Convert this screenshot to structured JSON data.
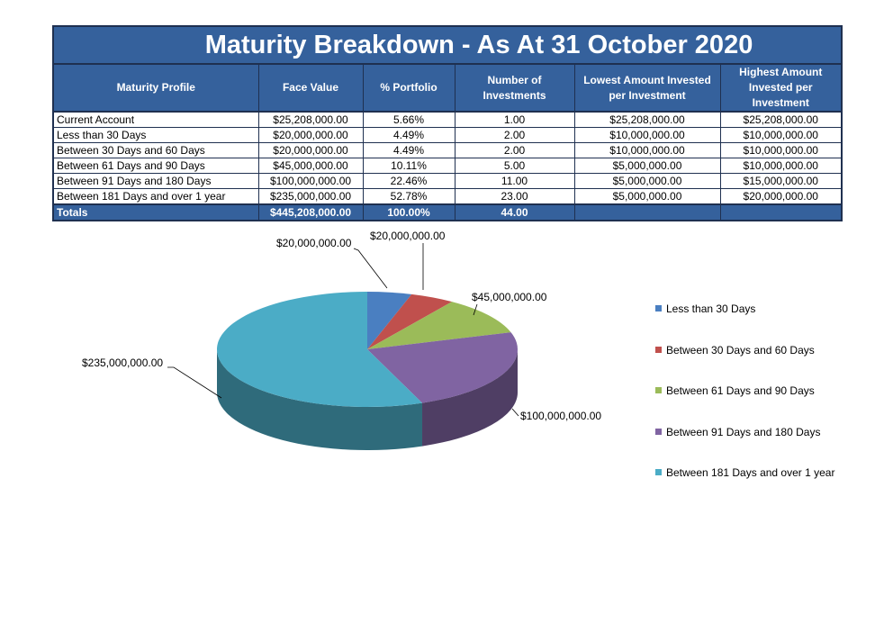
{
  "report": {
    "title": "Maturity Breakdown - As At 31 October 2020",
    "columns": [
      "Maturity Profile",
      "Face Value",
      "% Portfolio",
      "Number of Investments",
      "Lowest Amount Invested per Investment",
      "Highest Amount Invested per Investment"
    ],
    "rows": [
      [
        "Current Account",
        "$25,208,000.00",
        "5.66%",
        "1.00",
        "$25,208,000.00",
        "$25,208,000.00"
      ],
      [
        "Less than 30 Days",
        "$20,000,000.00",
        "4.49%",
        "2.00",
        "$10,000,000.00",
        "$10,000,000.00"
      ],
      [
        "Between 30 Days and 60 Days",
        "$20,000,000.00",
        "4.49%",
        "2.00",
        "$10,000,000.00",
        "$10,000,000.00"
      ],
      [
        "Between 61 Days and 90 Days",
        "$45,000,000.00",
        "10.11%",
        "5.00",
        "$5,000,000.00",
        "$10,000,000.00"
      ],
      [
        "Between 91 Days and 180 Days",
        "$100,000,000.00",
        "22.46%",
        "11.00",
        "$5,000,000.00",
        "$15,000,000.00"
      ],
      [
        "Between 181 Days and over 1 year",
        "$235,000,000.00",
        "52.78%",
        "23.00",
        "$5,000,000.00",
        "$20,000,000.00"
      ]
    ],
    "totals": [
      "Totals",
      "$445,208,000.00",
      "100.00%",
      "44.00",
      "",
      ""
    ]
  },
  "chart_data": {
    "type": "pie",
    "categories": [
      "Less than 30 Days",
      "Between 30 Days and 60 Days",
      "Between 61 Days and 90 Days",
      "Between 91 Days and 180 Days",
      "Between 181 Days and over 1 year"
    ],
    "values": [
      20000000,
      20000000,
      45000000,
      100000000,
      235000000
    ],
    "data_labels": [
      "$20,000,000.00",
      "$20,000,000.00",
      "$45,000,000.00",
      "$100,000,000.00",
      "$235,000,000.00"
    ],
    "colors": [
      "#4a7fc1",
      "#c0504d",
      "#9bbb59",
      "#8064a2",
      "#4bacc6"
    ],
    "style": "3d",
    "legend_position": "right"
  }
}
